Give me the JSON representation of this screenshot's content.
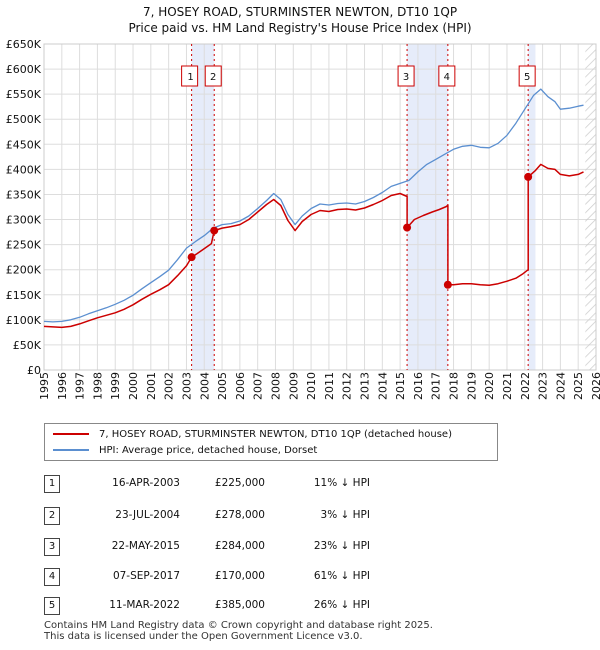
{
  "title": "7, HOSEY ROAD, STURMINSTER NEWTON, DT10 1QP",
  "subtitle": "Price paid vs. HM Land Registry's House Price Index (HPI)",
  "colors": {
    "property": "#cc0000",
    "hpi": "#5b8fd0",
    "band": "#e6ecfa",
    "grid": "#dddddd"
  },
  "chart_data": {
    "type": "line",
    "ylim": [
      0,
      650000
    ],
    "xlim": [
      1995,
      2026
    ],
    "y_ticks": [
      {
        "value": 0,
        "label": "£0"
      },
      {
        "value": 50000,
        "label": "£50K"
      },
      {
        "value": 100000,
        "label": "£100K"
      },
      {
        "value": 150000,
        "label": "£150K"
      },
      {
        "value": 200000,
        "label": "£200K"
      },
      {
        "value": 250000,
        "label": "£250K"
      },
      {
        "value": 300000,
        "label": "£300K"
      },
      {
        "value": 350000,
        "label": "£350K"
      },
      {
        "value": 400000,
        "label": "£400K"
      },
      {
        "value": 450000,
        "label": "£450K"
      },
      {
        "value": 500000,
        "label": "£500K"
      },
      {
        "value": 550000,
        "label": "£550K"
      },
      {
        "value": 600000,
        "label": "£600K"
      },
      {
        "value": 650000,
        "label": "£650K"
      }
    ],
    "x_ticks": [
      "1995",
      "1996",
      "1997",
      "1998",
      "1999",
      "2000",
      "2001",
      "2002",
      "2003",
      "2004",
      "2005",
      "2006",
      "2007",
      "2008",
      "2009",
      "2010",
      "2011",
      "2012",
      "2013",
      "2014",
      "2015",
      "2016",
      "2017",
      "2018",
      "2019",
      "2020",
      "2021",
      "2022",
      "2023",
      "2024",
      "2025",
      "2026"
    ],
    "grid": true,
    "series": [
      {
        "name": "7, HOSEY ROAD, STURMINSTER NEWTON, DT10 1QP (detached house)",
        "color": "#cc0000",
        "points": [
          [
            1995.0,
            87000
          ],
          [
            1995.5,
            86000
          ],
          [
            1996.0,
            85000
          ],
          [
            1996.5,
            87000
          ],
          [
            1997.0,
            92000
          ],
          [
            1997.5,
            98000
          ],
          [
            1998.0,
            104000
          ],
          [
            1998.5,
            109000
          ],
          [
            1999.0,
            114000
          ],
          [
            1999.5,
            121000
          ],
          [
            2000.0,
            130000
          ],
          [
            2000.5,
            141000
          ],
          [
            2001.0,
            151000
          ],
          [
            2001.5,
            160000
          ],
          [
            2002.0,
            170000
          ],
          [
            2002.5,
            188000
          ],
          [
            2003.0,
            208000
          ],
          [
            2003.29,
            225000
          ],
          [
            2003.6,
            232000
          ],
          [
            2004.0,
            242000
          ],
          [
            2004.4,
            252000
          ],
          [
            2004.56,
            278000
          ],
          [
            2005.0,
            283000
          ],
          [
            2005.5,
            286000
          ],
          [
            2006.0,
            290000
          ],
          [
            2006.5,
            300000
          ],
          [
            2007.0,
            315000
          ],
          [
            2007.5,
            330000
          ],
          [
            2007.9,
            340000
          ],
          [
            2008.3,
            328000
          ],
          [
            2008.7,
            298000
          ],
          [
            2009.1,
            278000
          ],
          [
            2009.5,
            296000
          ],
          [
            2010.0,
            310000
          ],
          [
            2010.5,
            318000
          ],
          [
            2011.0,
            316000
          ],
          [
            2011.5,
            320000
          ],
          [
            2012.0,
            321000
          ],
          [
            2012.5,
            319000
          ],
          [
            2013.0,
            323000
          ],
          [
            2013.5,
            330000
          ],
          [
            2014.0,
            338000
          ],
          [
            2014.5,
            348000
          ],
          [
            2015.0,
            352000
          ],
          [
            2015.39,
            346000
          ],
          [
            2015.39,
            284000
          ],
          [
            2015.8,
            300000
          ],
          [
            2016.3,
            308000
          ],
          [
            2016.8,
            315000
          ],
          [
            2017.2,
            320000
          ],
          [
            2017.6,
            326000
          ],
          [
            2017.68,
            329000
          ],
          [
            2017.68,
            170000
          ],
          [
            2018.0,
            170000
          ],
          [
            2018.5,
            172000
          ],
          [
            2019.0,
            172000
          ],
          [
            2019.5,
            170000
          ],
          [
            2020.0,
            169000
          ],
          [
            2020.5,
            172000
          ],
          [
            2021.0,
            177000
          ],
          [
            2021.5,
            183000
          ],
          [
            2021.9,
            192000
          ],
          [
            2022.19,
            200000
          ],
          [
            2022.19,
            385000
          ],
          [
            2022.6,
            398000
          ],
          [
            2022.9,
            410000
          ],
          [
            2023.3,
            402000
          ],
          [
            2023.7,
            400000
          ],
          [
            2024.0,
            390000
          ],
          [
            2024.5,
            387000
          ],
          [
            2025.0,
            390000
          ],
          [
            2025.3,
            395000
          ]
        ]
      },
      {
        "name": "HPI: Average price, detached house, Dorset",
        "color": "#5b8fd0",
        "points": [
          [
            1995.0,
            97000
          ],
          [
            1995.5,
            96000
          ],
          [
            1996.0,
            97000
          ],
          [
            1996.5,
            100000
          ],
          [
            1997.0,
            105000
          ],
          [
            1997.5,
            112000
          ],
          [
            1998.0,
            118000
          ],
          [
            1998.5,
            124000
          ],
          [
            1999.0,
            131000
          ],
          [
            1999.5,
            139000
          ],
          [
            2000.0,
            149000
          ],
          [
            2000.5,
            162000
          ],
          [
            2001.0,
            174000
          ],
          [
            2001.5,
            186000
          ],
          [
            2002.0,
            199000
          ],
          [
            2002.5,
            220000
          ],
          [
            2003.0,
            243000
          ],
          [
            2003.5,
            256000
          ],
          [
            2004.0,
            268000
          ],
          [
            2004.5,
            283000
          ],
          [
            2005.0,
            290000
          ],
          [
            2005.5,
            292000
          ],
          [
            2006.0,
            297000
          ],
          [
            2006.5,
            307000
          ],
          [
            2007.0,
            322000
          ],
          [
            2007.5,
            338000
          ],
          [
            2007.9,
            352000
          ],
          [
            2008.3,
            340000
          ],
          [
            2008.7,
            310000
          ],
          [
            2009.1,
            290000
          ],
          [
            2009.5,
            307000
          ],
          [
            2010.0,
            322000
          ],
          [
            2010.5,
            331000
          ],
          [
            2011.0,
            329000
          ],
          [
            2011.5,
            332000
          ],
          [
            2012.0,
            333000
          ],
          [
            2012.5,
            331000
          ],
          [
            2013.0,
            336000
          ],
          [
            2013.5,
            344000
          ],
          [
            2014.0,
            354000
          ],
          [
            2014.5,
            366000
          ],
          [
            2015.0,
            372000
          ],
          [
            2015.5,
            378000
          ],
          [
            2016.0,
            395000
          ],
          [
            2016.5,
            410000
          ],
          [
            2017.0,
            420000
          ],
          [
            2017.5,
            430000
          ],
          [
            2018.0,
            440000
          ],
          [
            2018.5,
            446000
          ],
          [
            2019.0,
            448000
          ],
          [
            2019.5,
            444000
          ],
          [
            2020.0,
            443000
          ],
          [
            2020.5,
            452000
          ],
          [
            2021.0,
            468000
          ],
          [
            2021.5,
            492000
          ],
          [
            2022.0,
            520000
          ],
          [
            2022.5,
            548000
          ],
          [
            2022.9,
            560000
          ],
          [
            2023.3,
            545000
          ],
          [
            2023.7,
            535000
          ],
          [
            2024.0,
            520000
          ],
          [
            2024.5,
            522000
          ],
          [
            2025.0,
            526000
          ],
          [
            2025.3,
            528000
          ]
        ]
      }
    ],
    "transactions": [
      {
        "num": "1",
        "x": 2003.29,
        "y": 225000,
        "date": "16-APR-2003",
        "price": "£225,000",
        "hpi": "11% ↓ HPI"
      },
      {
        "num": "2",
        "x": 2004.56,
        "y": 278000,
        "date": "23-JUL-2004",
        "price": "£278,000",
        "hpi": "3% ↓ HPI"
      },
      {
        "num": "3",
        "x": 2015.39,
        "y": 284000,
        "date": "22-MAY-2015",
        "price": "£284,000",
        "hpi": "23% ↓ HPI"
      },
      {
        "num": "4",
        "x": 2017.68,
        "y": 170000,
        "date": "07-SEP-2017",
        "price": "£170,000",
        "hpi": "61% ↓ HPI"
      },
      {
        "num": "5",
        "x": 2022.19,
        "y": 385000,
        "date": "11-MAR-2022",
        "price": "£385,000",
        "hpi": "26% ↓ HPI"
      }
    ],
    "bands": [
      [
        2003.29,
        2004.56
      ],
      [
        2015.39,
        2017.68
      ],
      [
        2022.19,
        2022.6
      ]
    ],
    "future_hatch_from": 2025.4
  },
  "legend": {
    "property_label": "7, HOSEY ROAD, STURMINSTER NEWTON, DT10 1QP (detached house)",
    "hpi_label": "HPI: Average price, detached house, Dorset"
  },
  "footer": {
    "line1": "Contains HM Land Registry data © Crown copyright and database right 2025.",
    "line2": "This data is licensed under the Open Government Licence v3.0."
  }
}
